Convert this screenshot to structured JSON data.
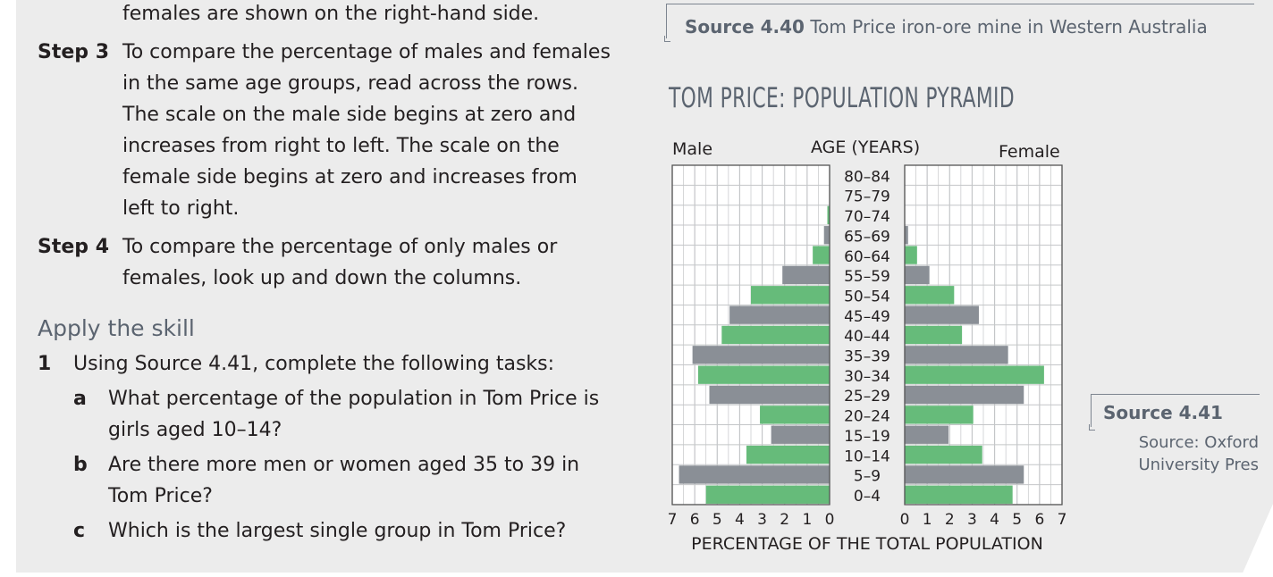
{
  "text_column": {
    "line_top": "females are shown on the right-hand side.",
    "step3": {
      "label": "Step 3",
      "lines": [
        "To compare the percentage of males and females",
        "in the same age groups, read across the rows.",
        "The scale on the male side begins at zero and",
        "increases from right to left. The scale on the",
        "female side begins at zero and increases from",
        "left to right."
      ]
    },
    "step4": {
      "label": "Step 4",
      "lines": [
        "To compare the percentage of only males or",
        "females, look up and down the columns."
      ]
    },
    "apply_heading": "Apply the skill",
    "question1": {
      "number": "1",
      "text": "Using Source 4.41, complete the following tasks:",
      "parts": [
        {
          "letter": "a",
          "lines": [
            "What percentage of the population in Tom Price is",
            "girls aged 10–14?"
          ]
        },
        {
          "letter": "b",
          "lines": [
            "Are there more men or women aged 35 to 39 in",
            "Tom Price?"
          ]
        },
        {
          "letter": "c",
          "lines": [
            "Which is the largest single group in Tom Price?"
          ]
        }
      ]
    }
  },
  "source_440": {
    "label": "Source 4.40",
    "caption": "Tom Price iron-ore mine in Western Australia"
  },
  "source_441": {
    "label": "Source 4.41",
    "credit_lines": [
      "Source: Oxford",
      "University Pres"
    ]
  },
  "colors": {
    "green": "#66bb7a",
    "grey": "#8a8f96",
    "grid": "#c4c6c8",
    "heading": "#5b6470"
  },
  "chart_data": {
    "type": "bar",
    "orientation": "population-pyramid",
    "title": "TOM PRICE: POPULATION PYRAMID",
    "left_label": "Male",
    "center_label": "AGE (YEARS)",
    "right_label": "Female",
    "xlabel": "PERCENTAGE OF THE TOTAL POPULATION",
    "male_ticks": [
      "7",
      "6",
      "5",
      "4",
      "3",
      "2",
      "1",
      "0"
    ],
    "female_ticks": [
      "0",
      "1",
      "2",
      "3",
      "4",
      "5",
      "6",
      "7"
    ],
    "xlim": [
      0,
      7
    ],
    "categories": [
      "80–84",
      "75–79",
      "70–74",
      "65–69",
      "60–64",
      "55–59",
      "50–54",
      "45–49",
      "40–44",
      "35–39",
      "30–34",
      "25–29",
      "20–24",
      "15–19",
      "10–14",
      "5–9",
      "0–4"
    ],
    "series": [
      {
        "name": "Male",
        "values": [
          0,
          0,
          0.1,
          0.25,
          0.75,
          2.1,
          3.5,
          4.45,
          4.8,
          6.1,
          5.85,
          5.35,
          3.1,
          2.6,
          3.7,
          6.7,
          5.5
        ]
      },
      {
        "name": "Female",
        "values": [
          0,
          0,
          0,
          0.15,
          0.55,
          1.1,
          2.2,
          3.3,
          2.55,
          4.6,
          6.2,
          5.3,
          3.05,
          1.95,
          3.45,
          5.3,
          4.8
        ]
      }
    ],
    "bar_color_pattern": [
      "grey",
      "grey",
      "green",
      "grey",
      "green",
      "grey",
      "green",
      "grey",
      "green",
      "grey",
      "green",
      "grey",
      "green",
      "grey",
      "green",
      "grey",
      "green"
    ]
  }
}
